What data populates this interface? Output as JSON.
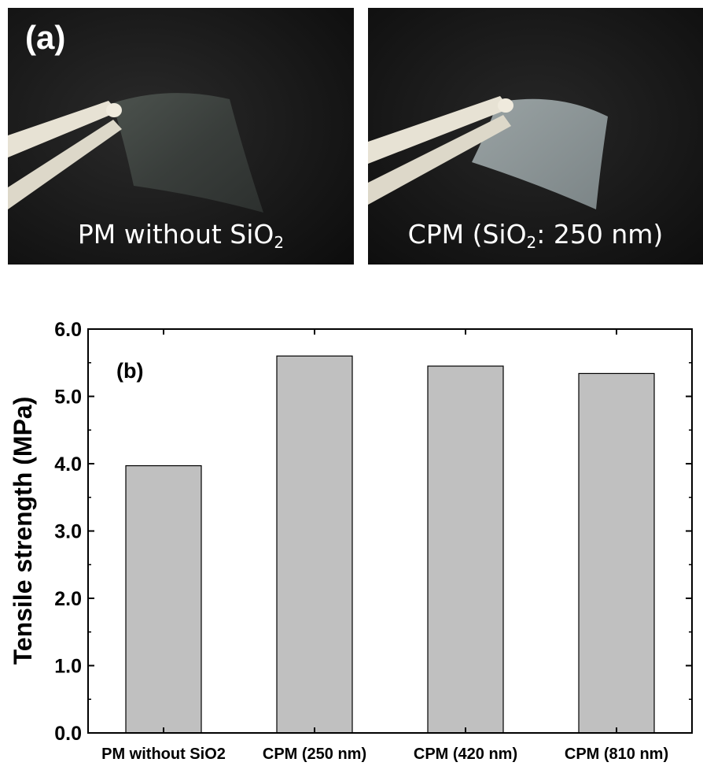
{
  "panel_a": {
    "tag": "(a)",
    "left_photo": {
      "label_main": "PM without SiO",
      "label_sub": "2",
      "label_tail": ""
    },
    "right_photo": {
      "label_main": "CPM (SiO",
      "label_sub": "2",
      "label_tail": ": 250 nm)"
    }
  },
  "chart_data": {
    "type": "bar",
    "panel_label": "(b)",
    "categories": [
      "PM without SiO2",
      "CPM (250 nm)",
      "CPM (420 nm)",
      "CPM (810 nm)"
    ],
    "values": [
      3.97,
      5.6,
      5.45,
      5.34
    ],
    "ylabel": "Tensile strength (MPa)",
    "xlabel": "",
    "ylim": [
      0,
      6.0
    ],
    "yticks": [
      "0.0",
      "1.0",
      "2.0",
      "3.0",
      "4.0",
      "5.0",
      "6.0"
    ],
    "grid": false,
    "bar_color": "#c0c0c0"
  }
}
